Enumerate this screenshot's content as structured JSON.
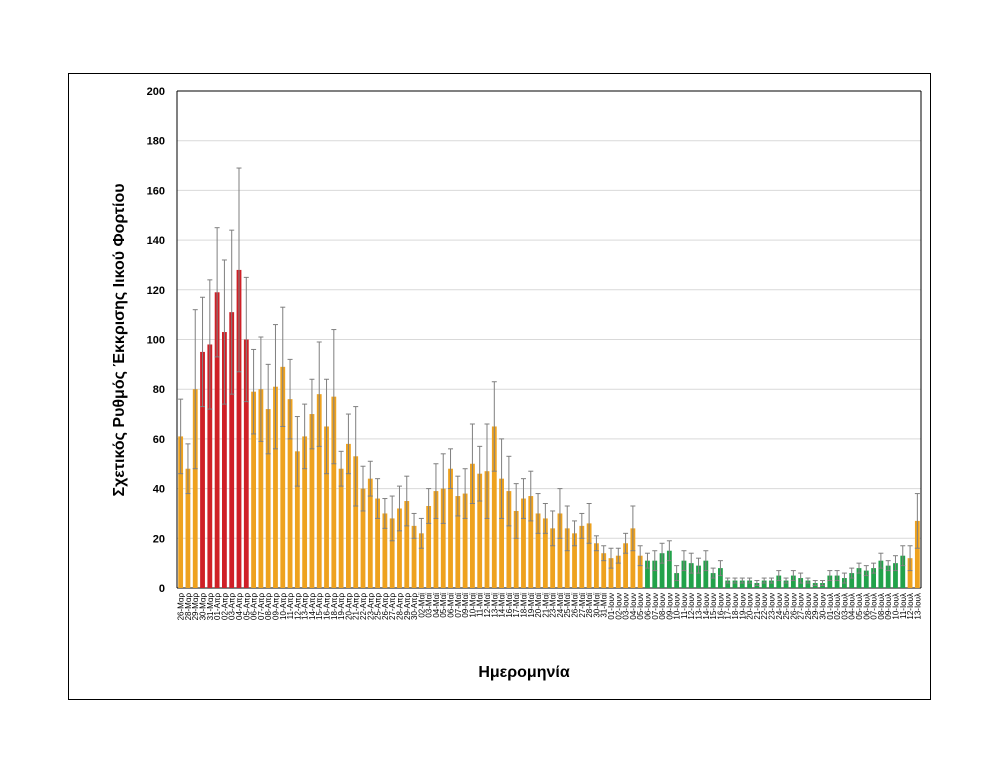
{
  "chart_data": {
    "type": "bar",
    "ylabel": "Σχετικός Ρυθμός Έκκρισης Ιικού Φορτίου",
    "xlabel": "Ημερομηνία",
    "categories": [
      "26-Μαρ",
      "28-Μαρ",
      "29-Μαρ",
      "30-Μαρ",
      "31-Μαρ",
      "01-Απρ",
      "02-Απρ",
      "03-Απρ",
      "04-Απρ",
      "05-Απρ",
      "06-Απρ",
      "07-Απρ",
      "08-Απρ",
      "09-Απρ",
      "10-Απρ",
      "11-Απρ",
      "12-Απρ",
      "13-Απρ",
      "14-Απρ",
      "15-Απρ",
      "16-Απρ",
      "18-Απρ",
      "19-Απρ",
      "20-Απρ",
      "21-Απρ",
      "22-Απρ",
      "23-Απρ",
      "25-Απρ",
      "26-Απρ",
      "27-Απρ",
      "28-Απρ",
      "29-Απρ",
      "30-Απρ",
      "02-Μαϊ",
      "03-Μαϊ",
      "04-Μαϊ",
      "05-Μαϊ",
      "06-Μαϊ",
      "07-Μαϊ",
      "09-Μαϊ",
      "10-Μαϊ",
      "11-Μαϊ",
      "12-Μαϊ",
      "13-Μαϊ",
      "14-Μαϊ",
      "16-Μαϊ",
      "17-Μαϊ",
      "18-Μαϊ",
      "19-Μαϊ",
      "20-Μαϊ",
      "21-Μαϊ",
      "23-Μαϊ",
      "24-Μαϊ",
      "25-Μαϊ",
      "26-Μαϊ",
      "27-Μαϊ",
      "28-Μαϊ",
      "30-Μαϊ",
      "31-Μαϊ",
      "01-Ιουν",
      "02-Ιουν",
      "03-Ιουν",
      "04-Ιουν",
      "05-Ιουν",
      "06-Ιουν",
      "07-Ιουν",
      "08-Ιουν",
      "09-Ιουν",
      "10-Ιουν",
      "11-Ιουν",
      "12-Ιουν",
      "13-Ιουν",
      "14-Ιουν",
      "15-Ιουν",
      "16-Ιουν",
      "17-Ιουν",
      "18-Ιουν",
      "19-Ιουν",
      "20-Ιουν",
      "21-Ιουν",
      "22-Ιουν",
      "23-Ιουν",
      "24-Ιουν",
      "25-Ιουν",
      "26-Ιουν",
      "27-Ιουν",
      "28-Ιουν",
      "29-Ιουν",
      "30-Ιουν",
      "01-Ιουλ",
      "02-Ιουλ",
      "03-Ιουλ",
      "04-Ιουλ",
      "05-Ιουλ",
      "06-Ιουλ",
      "07-Ιουλ",
      "08-Ιουλ",
      "09-Ιουλ",
      "10-Ιουλ",
      "11-Ιουλ",
      "12-Ιουλ",
      "13-Ιουλ"
    ],
    "values": [
      61,
      48,
      80,
      95,
      98,
      119,
      103,
      111,
      128,
      100,
      79,
      80,
      72,
      81,
      89,
      76,
      55,
      61,
      70,
      78,
      65,
      77,
      48,
      58,
      53,
      40,
      44,
      36,
      30,
      28,
      32,
      35,
      25,
      22,
      33,
      39,
      40,
      48,
      37,
      38,
      50,
      46,
      47,
      65,
      44,
      39,
      31,
      36,
      37,
      30,
      28,
      24,
      30,
      24,
      22,
      25,
      26,
      18,
      14,
      12,
      13,
      18,
      24,
      13,
      11,
      11,
      14,
      15,
      6,
      11,
      10,
      9,
      11,
      6,
      8,
      3,
      3,
      3,
      3,
      2,
      3,
      3,
      5,
      3,
      5,
      4,
      3,
      2,
      2,
      5,
      5,
      4,
      6,
      8,
      7,
      8,
      11,
      9,
      10,
      13,
      12,
      27
    ],
    "errors": [
      15,
      10,
      32,
      22,
      26,
      26,
      29,
      33,
      41,
      25,
      17,
      21,
      18,
      25,
      24,
      16,
      14,
      13,
      14,
      21,
      19,
      27,
      7,
      12,
      20,
      9,
      7,
      8,
      6,
      9,
      9,
      10,
      5,
      6,
      7,
      11,
      14,
      8,
      8,
      10,
      16,
      11,
      19,
      18,
      16,
      14,
      11,
      8,
      10,
      8,
      6,
      7,
      10,
      9,
      5,
      5,
      8,
      3,
      3,
      4,
      3,
      4,
      9,
      4,
      3,
      4,
      4,
      4,
      3,
      4,
      4,
      3,
      4,
      2,
      3,
      1,
      1,
      1,
      1,
      1,
      1,
      1,
      2,
      1,
      2,
      2,
      1,
      1,
      1,
      2,
      2,
      2,
      2,
      2,
      2,
      2,
      3,
      2,
      3,
      4,
      5,
      11
    ],
    "colors": [
      "#eea21f",
      "#eea21f",
      "#eea21f",
      "#cf2027",
      "#cf2027",
      "#cf2027",
      "#cf2027",
      "#cf2027",
      "#cf2027",
      "#cf2027",
      "#eea21f",
      "#eea21f",
      "#eea21f",
      "#eea21f",
      "#eea21f",
      "#eea21f",
      "#eea21f",
      "#eea21f",
      "#eea21f",
      "#eea21f",
      "#eea21f",
      "#eea21f",
      "#eea21f",
      "#eea21f",
      "#eea21f",
      "#eea21f",
      "#eea21f",
      "#eea21f",
      "#eea21f",
      "#eea21f",
      "#eea21f",
      "#eea21f",
      "#eea21f",
      "#eea21f",
      "#eea21f",
      "#eea21f",
      "#eea21f",
      "#eea21f",
      "#eea21f",
      "#eea21f",
      "#eea21f",
      "#eea21f",
      "#eea21f",
      "#eea21f",
      "#eea21f",
      "#eea21f",
      "#eea21f",
      "#eea21f",
      "#eea21f",
      "#eea21f",
      "#eea21f",
      "#eea21f",
      "#eea21f",
      "#eea21f",
      "#eea21f",
      "#eea21f",
      "#eea21f",
      "#eea21f",
      "#eea21f",
      "#eea21f",
      "#eea21f",
      "#eea21f",
      "#eea21f",
      "#eea21f",
      "#22a24a",
      "#22a24a",
      "#22a24a",
      "#22a24a",
      "#22a24a",
      "#22a24a",
      "#22a24a",
      "#22a24a",
      "#22a24a",
      "#22a24a",
      "#22a24a",
      "#22a24a",
      "#22a24a",
      "#22a24a",
      "#22a24a",
      "#22a24a",
      "#22a24a",
      "#22a24a",
      "#22a24a",
      "#22a24a",
      "#22a24a",
      "#22a24a",
      "#22a24a",
      "#22a24a",
      "#22a24a",
      "#22a24a",
      "#22a24a",
      "#22a24a",
      "#22a24a",
      "#22a24a",
      "#22a24a",
      "#22a24a",
      "#22a24a",
      "#22a24a",
      "#22a24a",
      "#22a24a",
      "#eea21f",
      "#eea21f"
    ],
    "error_color": "#7f7f7f",
    "ylim": [
      0,
      200
    ],
    "yticks": [
      0,
      20,
      40,
      60,
      80,
      100,
      120,
      140,
      160,
      180,
      200
    ],
    "grid": true
  }
}
